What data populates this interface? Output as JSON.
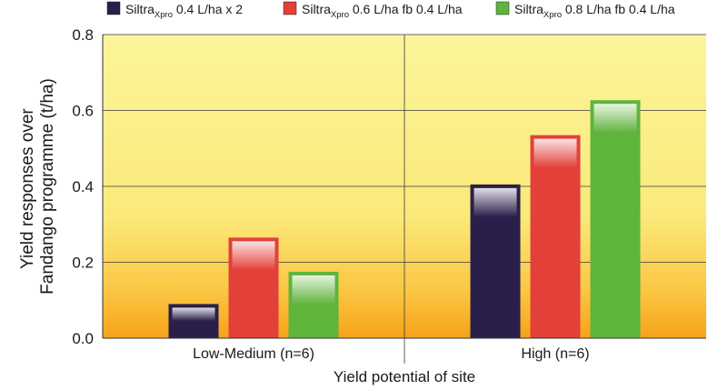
{
  "chart_data": {
    "type": "bar",
    "title": "",
    "xlabel": "Yield potential of site",
    "ylabel_lines": [
      "Yield responses over",
      "Fandango programme (t/ha)"
    ],
    "categories": [
      "Low-Medium (n=6)",
      "High (n=6)"
    ],
    "ylim": [
      0,
      0.8
    ],
    "yticks": [
      "0.0",
      "0.2",
      "0.4",
      "0.6",
      "0.8"
    ],
    "grid": true,
    "legend_position": "top",
    "series": [
      {
        "name": "Siltra Xpro 0.4 L/ha x 2",
        "brand": "Siltra",
        "sub": "Xpro",
        "rest": " 0.4 L/ha x 2",
        "color": "#2a1f4a",
        "values": [
          0.09,
          0.405
        ]
      },
      {
        "name": "Siltra Xpro 0.6 L/ha fb 0.4 L/ha",
        "brand": "Siltra",
        "sub": "Xpro",
        "rest": " 0.6 L/ha fb 0.4 L/ha",
        "color": "#e3403a",
        "values": [
          0.265,
          0.535
        ]
      },
      {
        "name": "Siltra Xpro 0.8 L/ha fb 0.4 L/ha",
        "brand": "Siltra",
        "sub": "Xpro",
        "rest": " 0.8 L/ha fb 0.4 L/ha",
        "color": "#5fb43c",
        "values": [
          0.175,
          0.627
        ]
      }
    ]
  }
}
